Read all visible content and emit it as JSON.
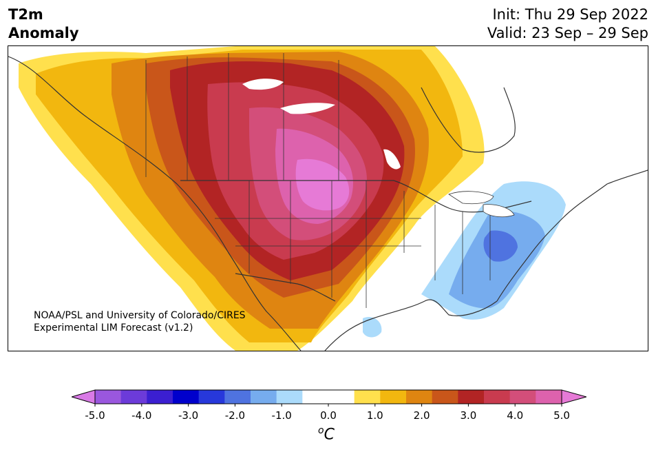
{
  "title": {
    "line1": "T2m",
    "line2": "Anomaly"
  },
  "info": {
    "init": "Init: Thu 29 Sep 2022",
    "valid": "Valid: 23 Sep – 29 Sep"
  },
  "credit": {
    "line1": "NOAA/PSL and University of Colorado/CIRES",
    "line2": "Experimental LIM Forecast (v1.2)"
  },
  "colorbar": {
    "unit_base": "C",
    "unit_sup": "o",
    "ticks": [
      "-5.0",
      "-4.0",
      "-3.0",
      "-2.0",
      "-1.0",
      "0.0",
      "1.0",
      "2.0",
      "3.0",
      "4.0",
      "5.0"
    ],
    "under_color": "#d97ae6",
    "over_color": "#e67ad6",
    "colors": [
      "#9a57de",
      "#6c3bd9",
      "#3b1fd1",
      "#0000cc",
      "#2738db",
      "#4f73e0",
      "#76acee",
      "#abdbfb",
      "#ffffff",
      "#ffffff",
      "#ffe04d",
      "#f2b70f",
      "#df8511",
      "#c9561a",
      "#b22424",
      "#c93b4f",
      "#d34e7a",
      "#dd62ad"
    ]
  },
  "map": {
    "water_color": "#ffffff",
    "border_color": "#333333"
  }
}
